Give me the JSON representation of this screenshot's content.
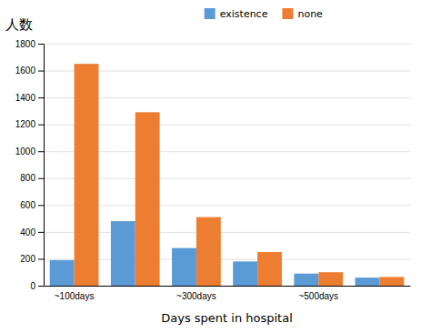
{
  "chart_data": {
    "type": "bar",
    "categories": [
      "~100days",
      null,
      "~300days",
      null,
      "~500days",
      null
    ],
    "series": [
      {
        "name": "existence",
        "color": "#5b9bd5",
        "values": [
          190,
          480,
          280,
          180,
          90,
          60
        ]
      },
      {
        "name": "none",
        "color": "#ed7d31",
        "values": [
          1650,
          1290,
          510,
          250,
          100,
          65
        ]
      }
    ],
    "xlabel": "Days spent in hospital",
    "ylabel": "人数",
    "ylim": [
      0,
      1800
    ],
    "yticks": [
      0,
      200,
      400,
      600,
      800,
      1000,
      1200,
      1400,
      1600,
      1800
    ],
    "grid": true,
    "legend": "top"
  }
}
